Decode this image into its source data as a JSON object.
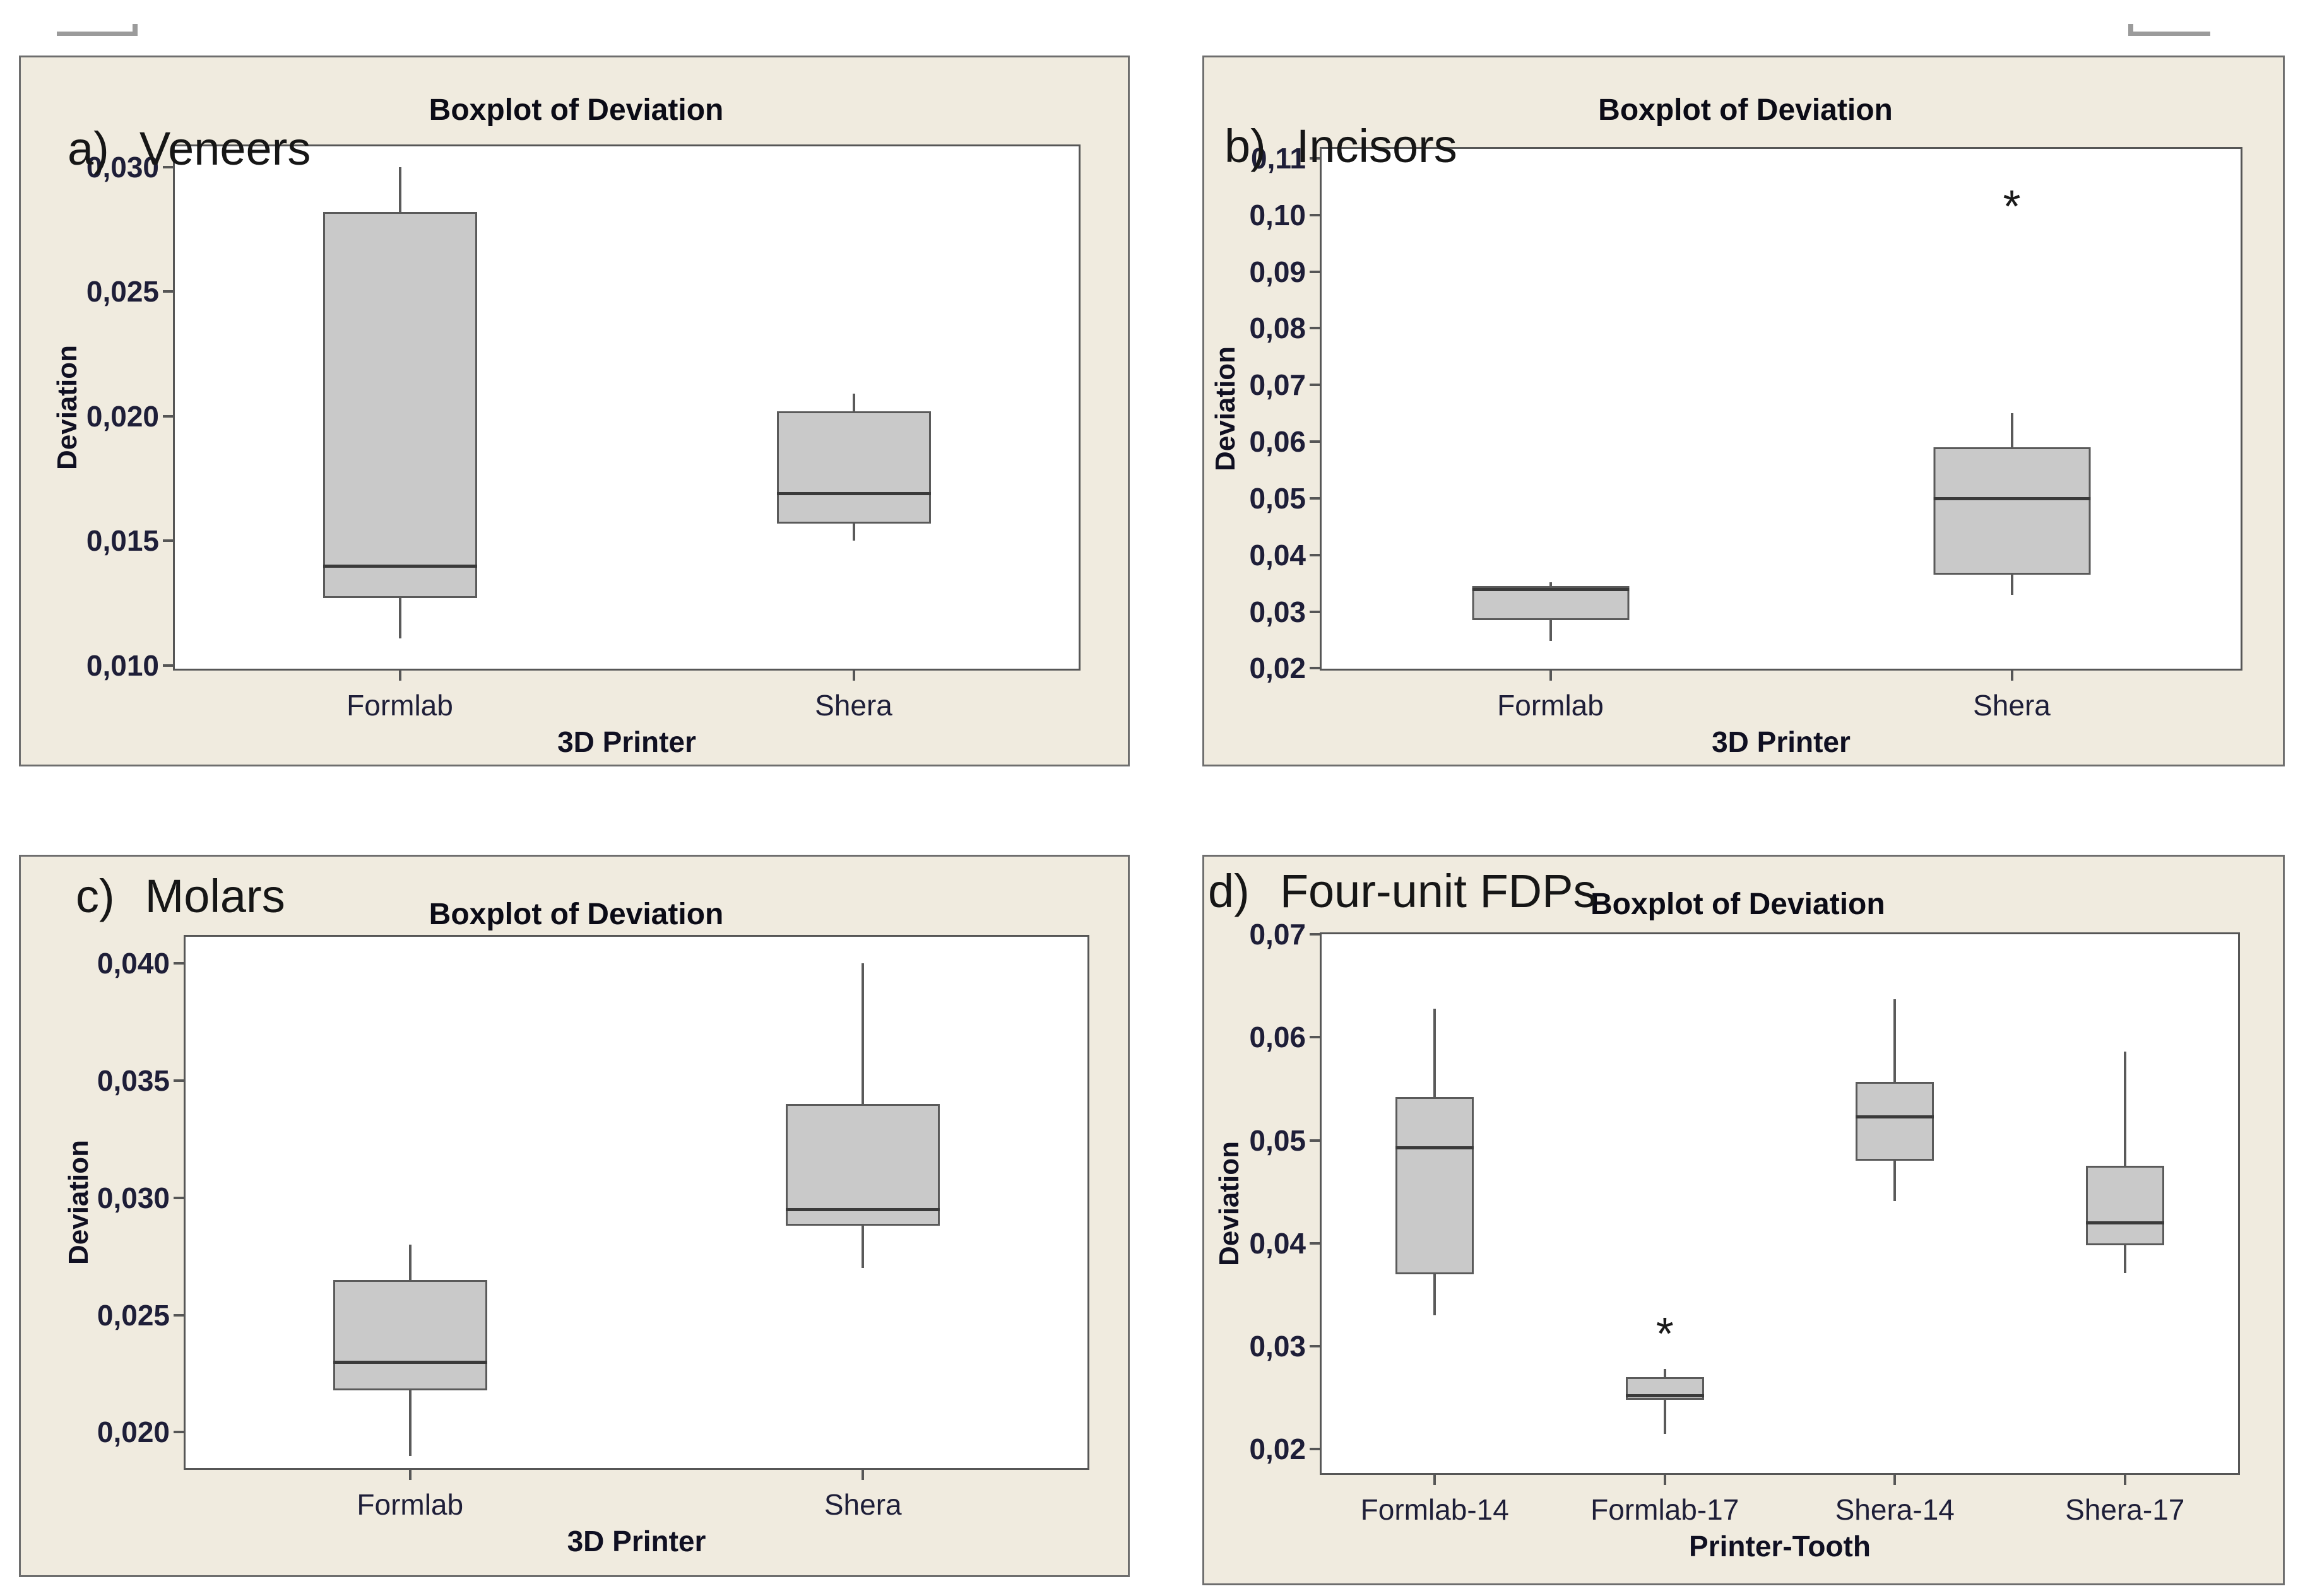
{
  "page": {
    "background": "#FFFFFF"
  },
  "colors": {
    "panel_bg": "#F0EBDF",
    "panel_border": "#6E6E6E",
    "plot_bg": "#FFFFFF",
    "plot_border": "#565656",
    "box_fill": "#C9C9C9",
    "box_border": "#5A5A5A",
    "median_line": "#3A3A3A",
    "whisker": "#5A5A5A",
    "tick_text": "#1E1E38",
    "title_text": "#0B0B16",
    "axis_label_text": "#101022",
    "overlay_text": "#161616",
    "outlier": "#1A1A1A",
    "artifact_line": "#9B9B9B"
  },
  "chart_data": [
    {
      "id": "a",
      "type": "boxplot",
      "panel_label": {
        "prefix": "a)",
        "text": "Veneers"
      },
      "title": "Boxplot of Deviation",
      "xlabel": "3D Printer",
      "ylabel": "Deviation",
      "ylim": [
        0.0098,
        0.0309
      ],
      "yticks": [
        {
          "value": 0.03,
          "label": "0,030"
        },
        {
          "value": 0.025,
          "label": "0,025"
        },
        {
          "value": 0.02,
          "label": "0,020"
        },
        {
          "value": 0.015,
          "label": "0,015"
        },
        {
          "value": 0.01,
          "label": "0,010"
        }
      ],
      "categories": [
        "Formlab",
        "Shera"
      ],
      "boxes": [
        {
          "category": "Formlab",
          "whisker_low": 0.0111,
          "q1": 0.0127,
          "median": 0.014,
          "q3": 0.0282,
          "whisker_high": 0.03,
          "outliers": []
        },
        {
          "category": "Shera",
          "whisker_low": 0.015,
          "q1": 0.0157,
          "median": 0.0169,
          "q3": 0.0202,
          "whisker_high": 0.0209,
          "outliers": []
        }
      ],
      "grid": false,
      "legend": null
    },
    {
      "id": "b",
      "type": "boxplot",
      "panel_label": {
        "prefix": "b)",
        "text": "Incisors"
      },
      "title": "Boxplot of Deviation",
      "xlabel": "3D Printer",
      "ylabel": "Deviation",
      "ylim": [
        0.0196,
        0.112
      ],
      "yticks": [
        {
          "value": 0.11,
          "label": "0,11"
        },
        {
          "value": 0.1,
          "label": "0,10"
        },
        {
          "value": 0.09,
          "label": "0,09"
        },
        {
          "value": 0.08,
          "label": "0,08"
        },
        {
          "value": 0.07,
          "label": "0,07"
        },
        {
          "value": 0.06,
          "label": "0,06"
        },
        {
          "value": 0.05,
          "label": "0,05"
        },
        {
          "value": 0.04,
          "label": "0,04"
        },
        {
          "value": 0.03,
          "label": "0,03"
        },
        {
          "value": 0.02,
          "label": "0,02"
        }
      ],
      "categories": [
        "Formlab",
        "Shera"
      ],
      "boxes": [
        {
          "category": "Formlab",
          "whisker_low": 0.0248,
          "q1": 0.0285,
          "median": 0.034,
          "q3": 0.0345,
          "whisker_high": 0.0352,
          "outliers": []
        },
        {
          "category": "Shera",
          "whisker_low": 0.033,
          "q1": 0.0365,
          "median": 0.05,
          "q3": 0.059,
          "whisker_high": 0.065,
          "outliers": [
            0.103
          ]
        }
      ],
      "grid": false,
      "legend": null
    },
    {
      "id": "c",
      "type": "boxplot",
      "panel_label": {
        "prefix": "c)",
        "text": "Molars"
      },
      "title": "Boxplot of Deviation",
      "xlabel": "3D Printer",
      "ylabel": "Deviation",
      "ylim": [
        0.0184,
        0.0412
      ],
      "yticks": [
        {
          "value": 0.04,
          "label": "0,040"
        },
        {
          "value": 0.035,
          "label": "0,035"
        },
        {
          "value": 0.03,
          "label": "0,030"
        },
        {
          "value": 0.025,
          "label": "0,025"
        },
        {
          "value": 0.02,
          "label": "0,020"
        }
      ],
      "categories": [
        "Formlab",
        "Shera"
      ],
      "boxes": [
        {
          "category": "Formlab",
          "whisker_low": 0.019,
          "q1": 0.0218,
          "median": 0.023,
          "q3": 0.0265,
          "whisker_high": 0.028,
          "outliers": []
        },
        {
          "category": "Shera",
          "whisker_low": 0.027,
          "q1": 0.0288,
          "median": 0.0295,
          "q3": 0.034,
          "whisker_high": 0.04,
          "outliers": []
        }
      ],
      "grid": false,
      "legend": null
    },
    {
      "id": "d",
      "type": "boxplot",
      "panel_label": {
        "prefix": "d)",
        "text": "Four-unit FDPs"
      },
      "title": "Boxplot of Deviation",
      "xlabel": "Printer-Tooth",
      "ylabel": "Deviation",
      "ylim": [
        0.0175,
        0.0702
      ],
      "yticks": [
        {
          "value": 0.07,
          "label": "0,07"
        },
        {
          "value": 0.06,
          "label": "0,06"
        },
        {
          "value": 0.05,
          "label": "0,05"
        },
        {
          "value": 0.04,
          "label": "0,04"
        },
        {
          "value": 0.03,
          "label": "0,03"
        },
        {
          "value": 0.02,
          "label": "0,02"
        }
      ],
      "categories": [
        "Formlab-14",
        "Formlab-17",
        "Shera-14",
        "Shera-17"
      ],
      "boxes": [
        {
          "category": "Formlab-14",
          "whisker_low": 0.033,
          "q1": 0.037,
          "median": 0.0493,
          "q3": 0.0542,
          "whisker_high": 0.0628,
          "outliers": []
        },
        {
          "category": "Formlab-17",
          "whisker_low": 0.0215,
          "q1": 0.0248,
          "median": 0.0252,
          "q3": 0.027,
          "whisker_high": 0.0278,
          "outliers": [
            0.032
          ]
        },
        {
          "category": "Shera-14",
          "whisker_low": 0.0441,
          "q1": 0.048,
          "median": 0.0523,
          "q3": 0.0557,
          "whisker_high": 0.0637,
          "outliers": []
        },
        {
          "category": "Shera-17",
          "whisker_low": 0.0371,
          "q1": 0.0398,
          "median": 0.042,
          "q3": 0.0475,
          "whisker_high": 0.0586,
          "outliers": []
        }
      ],
      "grid": false,
      "legend": null
    }
  ]
}
